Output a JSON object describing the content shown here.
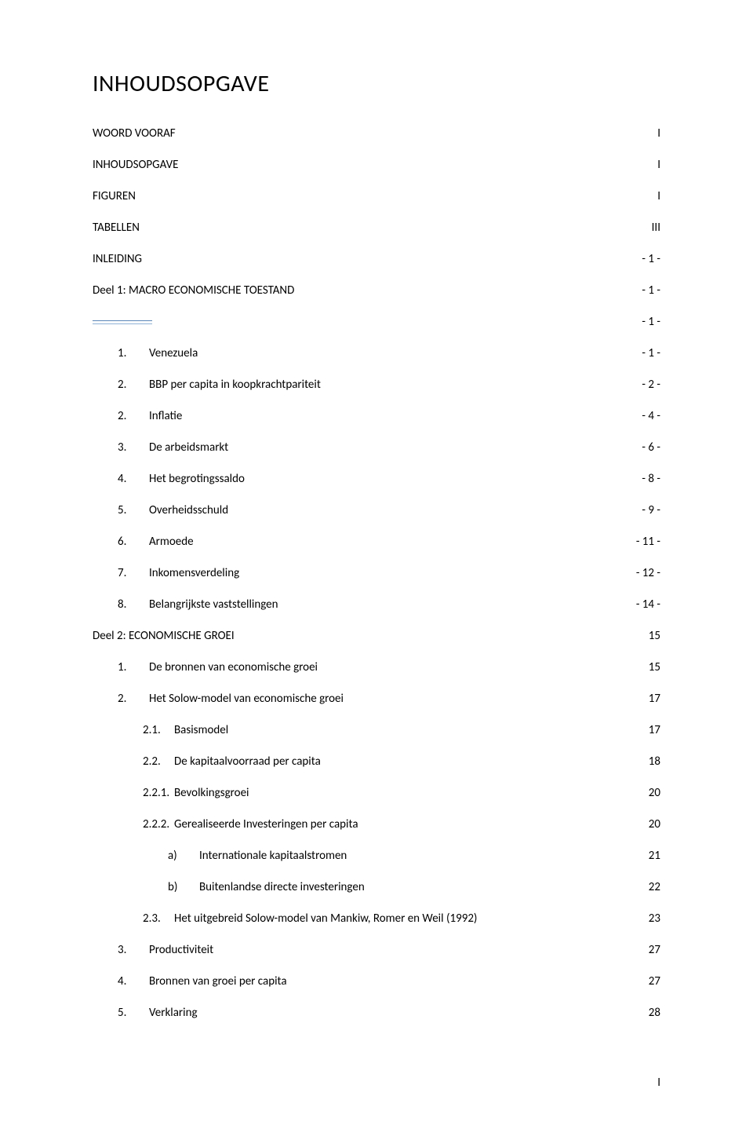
{
  "title": "INHOUDSOPGAVE",
  "footerPage": "I",
  "colors": {
    "ruleTop": "#5b88b8",
    "ruleBottom": "#8fb2d6",
    "text": "#000000",
    "background": "#ffffff"
  },
  "typography": {
    "titleFontSize": 30,
    "bodyFontSize": 15,
    "fontFamily": "Calibri"
  },
  "entries": [
    {
      "type": "row",
      "level": 1,
      "num": "",
      "label": "WOORD VOORAF",
      "page": "I"
    },
    {
      "type": "row",
      "level": 1,
      "num": "",
      "label": "INHOUDSOPGAVE",
      "page": "I"
    },
    {
      "type": "row",
      "level": 1,
      "num": "",
      "label": "FIGUREN",
      "page": "I"
    },
    {
      "type": "row",
      "level": 1,
      "num": "",
      "label": "TABELLEN",
      "page": "III"
    },
    {
      "type": "row",
      "level": 1,
      "num": "",
      "label": "INLEIDING",
      "page": "- 1 -"
    },
    {
      "type": "row",
      "level": 1,
      "num": "",
      "label": "Deel 1: MACRO ECONOMISCHE TOESTAND",
      "page": "- 1 -"
    },
    {
      "type": "rule",
      "page": "- 1 -"
    },
    {
      "type": "row",
      "level": 2,
      "num": "1.",
      "label": "Venezuela",
      "page": "- 1 -"
    },
    {
      "type": "row",
      "level": 2,
      "num": "2.",
      "label": "BBP per capita in koopkrachtpariteit",
      "page": "- 2 -"
    },
    {
      "type": "row",
      "level": 2,
      "num": "2.",
      "label": "Inflatie",
      "page": "- 4 -"
    },
    {
      "type": "row",
      "level": 2,
      "num": "3.",
      "label": "De arbeidsmarkt",
      "page": "- 6 -"
    },
    {
      "type": "row",
      "level": 2,
      "num": "4.",
      "label": "Het begrotingssaldo",
      "page": "- 8 -"
    },
    {
      "type": "row",
      "level": 2,
      "num": "5.",
      "label": "Overheidsschuld",
      "page": "- 9 -"
    },
    {
      "type": "row",
      "level": 2,
      "num": "6.",
      "label": "Armoede",
      "page": "- 11 -"
    },
    {
      "type": "row",
      "level": 2,
      "num": "7.",
      "label": "Inkomensverdeling",
      "page": "- 12 -"
    },
    {
      "type": "row",
      "level": 2,
      "num": "8.",
      "label": "Belangrijkste vaststellingen",
      "page": "- 14 -"
    },
    {
      "type": "row",
      "level": 1,
      "num": "",
      "label": "Deel 2: ECONOMISCHE GROEI",
      "page": "15"
    },
    {
      "type": "row",
      "level": 2,
      "num": "1.",
      "label": "De bronnen van economische groei",
      "page": "15"
    },
    {
      "type": "row",
      "level": 2,
      "num": "2.",
      "label": "Het Solow-model van economische groei",
      "page": "17"
    },
    {
      "type": "row",
      "level": 3,
      "num": "2.1.",
      "label": "Basismodel",
      "page": "17"
    },
    {
      "type": "row",
      "level": 3,
      "num": "2.2.",
      "label": "De kapitaalvoorraad per capita",
      "page": "18"
    },
    {
      "type": "row",
      "level": 3,
      "num": "2.2.1.",
      "label": "Bevolkingsgroei",
      "page": "20"
    },
    {
      "type": "row",
      "level": 3,
      "num": "2.2.2.",
      "label": "Gerealiseerde Investeringen per capita",
      "page": "20"
    },
    {
      "type": "row",
      "level": 4,
      "num": "a)",
      "label": "Internationale kapitaalstromen",
      "page": "21"
    },
    {
      "type": "row",
      "level": 4,
      "num": "b)",
      "label": "Buitenlandse directe investeringen",
      "page": "22"
    },
    {
      "type": "row",
      "level": 3,
      "num": "2.3.",
      "label": "Het uitgebreid Solow-model van Mankiw, Romer en Weil (1992)",
      "page": "23"
    },
    {
      "type": "row",
      "level": 2,
      "num": "3.",
      "label": "Productiviteit",
      "page": "27"
    },
    {
      "type": "row",
      "level": 2,
      "num": "4.",
      "label": "Bronnen van groei per capita",
      "page": "27"
    },
    {
      "type": "row",
      "level": 2,
      "num": "5.",
      "label": "Verklaring",
      "page": "28"
    }
  ]
}
